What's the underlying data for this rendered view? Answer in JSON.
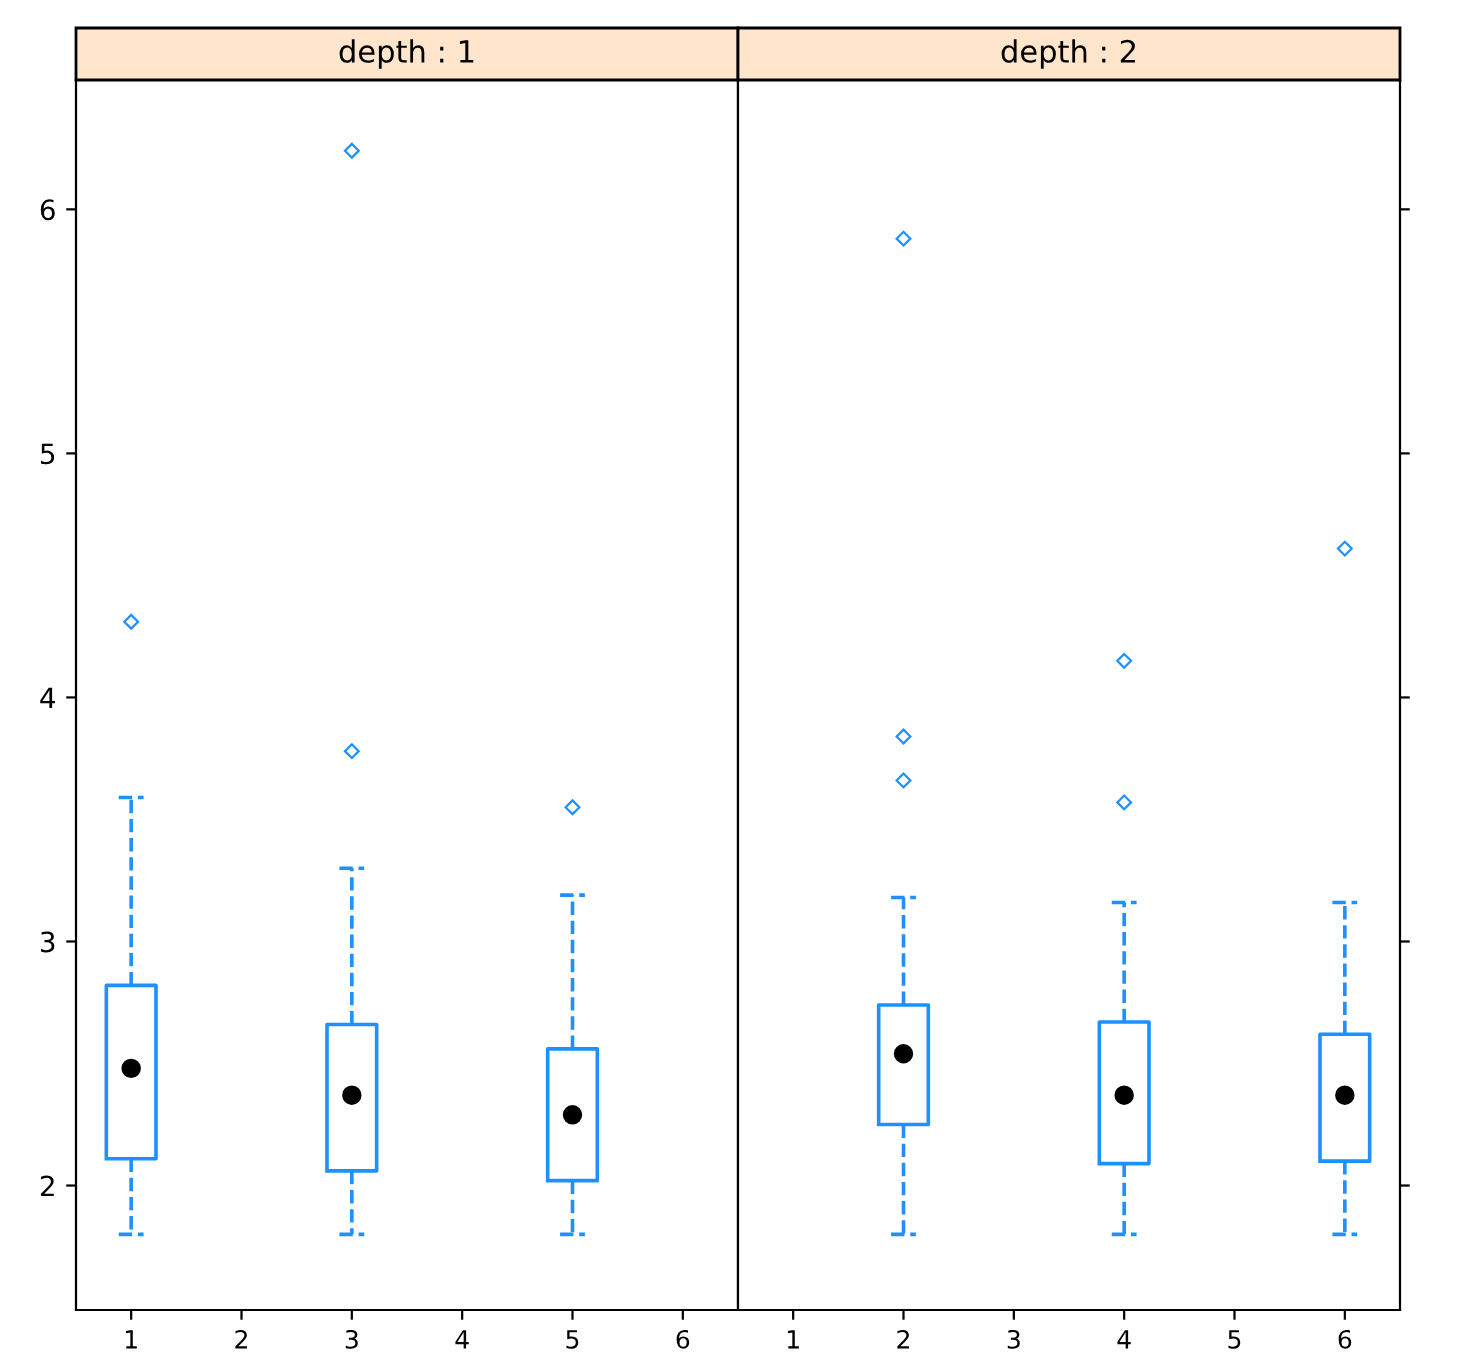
{
  "chart_data": [
    {
      "type": "box",
      "title": "depth : 1",
      "categories": [
        "1",
        "2",
        "3",
        "4",
        "5",
        "6"
      ],
      "color": "#1e90ff",
      "line_style": "dashed",
      "ylim": [
        1.49,
        6.53
      ],
      "yticks": [
        2,
        3,
        4,
        5,
        6
      ],
      "grid": false,
      "tick_labels": "xy",
      "boxes": [
        {
          "low": 1.8,
          "q1": 2.11,
          "median": 2.48,
          "q3": 2.82,
          "high": 3.59,
          "outliers": [
            4.31
          ]
        },
        null,
        {
          "low": 1.8,
          "q1": 2.06,
          "median": 2.37,
          "q3": 2.66,
          "high": 3.3,
          "outliers": [
            3.78,
            6.24
          ]
        },
        null,
        {
          "low": 1.8,
          "q1": 2.02,
          "median": 2.29,
          "q3": 2.56,
          "high": 3.19,
          "outliers": [
            3.55
          ]
        },
        null
      ]
    },
    {
      "type": "box",
      "title": "depth : 2",
      "categories": [
        "1",
        "2",
        "3",
        "4",
        "5",
        "6"
      ],
      "color": "#1e90ff",
      "line_style": "dashed",
      "ylim": [
        1.49,
        6.53
      ],
      "yticks": [
        2,
        3,
        4,
        5,
        6
      ],
      "grid": false,
      "tick_labels": "x",
      "boxes": [
        null,
        {
          "low": 1.8,
          "q1": 2.25,
          "median": 2.54,
          "q3": 2.74,
          "high": 3.18,
          "outliers": [
            3.66,
            3.84,
            5.88
          ]
        },
        null,
        {
          "low": 1.8,
          "q1": 2.09,
          "median": 2.37,
          "q3": 2.67,
          "high": 3.16,
          "outliers": [
            3.57,
            4.15
          ]
        },
        null,
        {
          "low": 1.8,
          "q1": 2.1,
          "median": 2.37,
          "q3": 2.62,
          "high": 3.16,
          "outliers": [
            4.61
          ]
        }
      ]
    }
  ]
}
